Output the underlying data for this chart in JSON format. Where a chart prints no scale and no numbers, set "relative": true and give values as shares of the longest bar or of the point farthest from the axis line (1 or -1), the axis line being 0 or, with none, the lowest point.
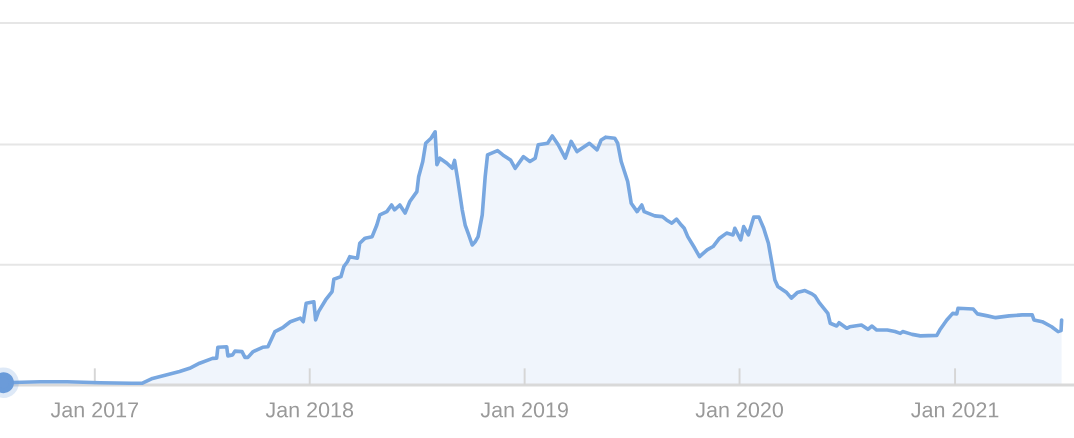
{
  "chart_data": {
    "type": "area",
    "relative": true,
    "tick_labels": "x",
    "ref_lines": [
      {
        "axis": "y",
        "value": 0.475,
        "color": "#e6e6e6"
      },
      {
        "axis": "y",
        "value": 0.95,
        "color": "#e6e6e6"
      },
      {
        "axis": "y",
        "value": 1.43,
        "color": "#e6e6e6"
      }
    ],
    "xlim": [
      "2016-07-24",
      "2021-07-22"
    ],
    "xticks": [
      {
        "value": "2017-01-01",
        "label": "Jan 2017"
      },
      {
        "value": "2018-01-01",
        "label": "Jan 2018"
      },
      {
        "value": "2019-01-01",
        "label": "Jan 2019"
      },
      {
        "value": "2020-01-01",
        "label": "Jan 2020"
      },
      {
        "value": "2021-01-01",
        "label": "Jan 2021"
      }
    ],
    "x": [
      "2016-07-30",
      "2016-09-30",
      "2016-11-15",
      "2017-01-10",
      "2017-03-05",
      "2017-03-23",
      "2017-04-09",
      "2017-05-25",
      "2017-06-11",
      "2017-06-28",
      "2017-07-20",
      "2017-07-27",
      "2017-07-29",
      "2017-08-13",
      "2017-08-15",
      "2017-08-23",
      "2017-08-27",
      "2017-09-08",
      "2017-09-13",
      "2017-09-18",
      "2017-09-27",
      "2017-10-13",
      "2017-10-22",
      "2017-11-03",
      "2017-11-17",
      "2017-11-29",
      "2017-12-16",
      "2017-12-21",
      "2017-12-26",
      "2018-01-08",
      "2018-01-11",
      "2018-01-16",
      "2018-01-28",
      "2018-02-08",
      "2018-02-11",
      "2018-02-23",
      "2018-02-28",
      "2018-03-06",
      "2018-03-10",
      "2018-03-23",
      "2018-03-27",
      "2018-04-05",
      "2018-04-17",
      "2018-04-25",
      "2018-04-30",
      "2018-05-12",
      "2018-05-20",
      "2018-05-25",
      "2018-06-03",
      "2018-06-12",
      "2018-06-20",
      "2018-07-02",
      "2018-07-05",
      "2018-07-12",
      "2018-07-17",
      "2018-07-26",
      "2018-08-02",
      "2018-08-05",
      "2018-08-10",
      "2018-08-22",
      "2018-08-31",
      "2018-09-04",
      "2018-09-09",
      "2018-09-17",
      "2018-09-22",
      "2018-09-27",
      "2018-10-04",
      "2018-10-09",
      "2018-10-14",
      "2018-10-21",
      "2018-10-26",
      "2018-10-30",
      "2018-11-16",
      "2018-11-25",
      "2018-12-08",
      "2018-12-16",
      "2018-12-30",
      "2019-01-10",
      "2019-01-19",
      "2019-01-24",
      "2019-02-09",
      "2019-02-17",
      "2019-02-27",
      "2019-03-11",
      "2019-03-21",
      "2019-03-31",
      "2019-04-21",
      "2019-05-04",
      "2019-05-11",
      "2019-05-19",
      "2019-06-03",
      "2019-06-08",
      "2019-06-14",
      "2019-06-25",
      "2019-07-01",
      "2019-07-11",
      "2019-07-19",
      "2019-07-23",
      "2019-08-10",
      "2019-08-23",
      "2019-08-30",
      "2019-09-08",
      "2019-09-16",
      "2019-09-24",
      "2019-09-29",
      "2019-10-05",
      "2019-10-17",
      "2019-10-25",
      "2019-11-07",
      "2019-11-17",
      "2019-11-28",
      "2019-12-10",
      "2019-12-21",
      "2019-12-24",
      "2020-01-03",
      "2020-01-08",
      "2020-01-16",
      "2020-01-25",
      "2020-02-03",
      "2020-02-11",
      "2020-02-19",
      "2020-03-01",
      "2020-03-06",
      "2020-03-21",
      "2020-03-29",
      "2020-04-08",
      "2020-04-21",
      "2020-05-03",
      "2020-05-08",
      "2020-05-16",
      "2020-05-30",
      "2020-06-03",
      "2020-06-14",
      "2020-06-18",
      "2020-07-01",
      "2020-07-06",
      "2020-07-26",
      "2020-08-06",
      "2020-08-13",
      "2020-08-21",
      "2020-09-08",
      "2020-09-21",
      "2020-09-30",
      "2020-10-04",
      "2020-10-20",
      "2020-11-03",
      "2020-12-01",
      "2020-12-06",
      "2020-12-18",
      "2020-12-28",
      "2021-01-04",
      "2021-01-06",
      "2021-02-01",
      "2021-02-08",
      "2021-02-25",
      "2021-03-11",
      "2021-04-03",
      "2021-04-25",
      "2021-05-12",
      "2021-05-15",
      "2021-05-29",
      "2021-06-14",
      "2021-06-25",
      "2021-06-30",
      "2021-07-01"
    ],
    "series": [
      {
        "color": "#78a7e0",
        "values": [
          0.009,
          0.013,
          0.013,
          0.009,
          0.007,
          0.007,
          0.026,
          0.053,
          0.066,
          0.086,
          0.105,
          0.106,
          0.149,
          0.151,
          0.115,
          0.119,
          0.134,
          0.132,
          0.109,
          0.109,
          0.132,
          0.149,
          0.151,
          0.211,
          0.228,
          0.25,
          0.264,
          0.25,
          0.323,
          0.329,
          0.257,
          0.29,
          0.336,
          0.369,
          0.418,
          0.428,
          0.468,
          0.487,
          0.507,
          0.501,
          0.56,
          0.58,
          0.586,
          0.632,
          0.672,
          0.685,
          0.711,
          0.692,
          0.711,
          0.679,
          0.725,
          0.764,
          0.823,
          0.883,
          0.955,
          0.975,
          1,
          0.87,
          0.896,
          0.876,
          0.856,
          0.887,
          0.817,
          0.692,
          0.632,
          0.6,
          0.553,
          0.566,
          0.586,
          0.672,
          0.823,
          0.909,
          0.926,
          0.909,
          0.889,
          0.856,
          0.902,
          0.883,
          0.896,
          0.949,
          0.955,
          0.984,
          0.949,
          0.896,
          0.962,
          0.922,
          0.955,
          0.929,
          0.968,
          0.979,
          0.975,
          0.955,
          0.883,
          0.804,
          0.718,
          0.685,
          0.711,
          0.685,
          0.668,
          0.665,
          0.652,
          0.639,
          0.655,
          0.632,
          0.619,
          0.586,
          0.54,
          0.507,
          0.534,
          0.547,
          0.58,
          0.6,
          0.593,
          0.619,
          0.573,
          0.626,
          0.593,
          0.663,
          0.663,
          0.619,
          0.56,
          0.415,
          0.389,
          0.365,
          0.343,
          0.365,
          0.373,
          0.36,
          0.352,
          0.323,
          0.283,
          0.244,
          0.233,
          0.246,
          0.224,
          0.23,
          0.237,
          0.22,
          0.233,
          0.217,
          0.217,
          0.211,
          0.204,
          0.211,
          0.2,
          0.194,
          0.196,
          0.217,
          0.257,
          0.283,
          0.281,
          0.303,
          0.3,
          0.281,
          0.273,
          0.266,
          0.273,
          0.277,
          0.277,
          0.257,
          0.25,
          0.23,
          0.211,
          0.215,
          0.257
        ]
      },
      {
        "type": "scatter",
        "marker": "circle",
        "color": "#6b9bd9",
        "x": [
          "2016-07-30"
        ],
        "values": [
          0.009
        ]
      }
    ]
  }
}
